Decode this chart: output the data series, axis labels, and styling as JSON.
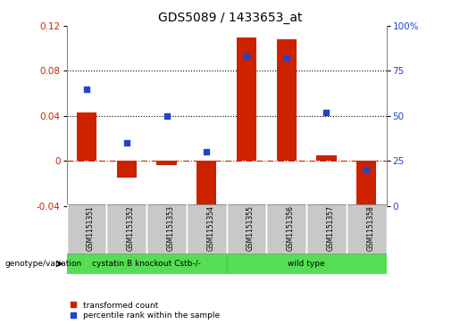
{
  "title": "GDS5089 / 1433653_at",
  "samples": [
    "GSM1151351",
    "GSM1151352",
    "GSM1151353",
    "GSM1151354",
    "GSM1151355",
    "GSM1151356",
    "GSM1151357",
    "GSM1151358"
  ],
  "transformed_count": [
    0.043,
    -0.015,
    -0.004,
    -0.045,
    0.11,
    0.108,
    0.005,
    -0.046
  ],
  "percentile_rank": [
    65,
    35,
    50,
    30,
    83,
    82,
    52,
    20
  ],
  "bar_color": "#cc2200",
  "dot_color": "#2244cc",
  "ylim_left": [
    -0.04,
    0.12
  ],
  "ylim_right": [
    0,
    100
  ],
  "yticks_left": [
    -0.04,
    0.0,
    0.04,
    0.08,
    0.12
  ],
  "yticks_right": [
    0,
    25,
    50,
    75,
    100
  ],
  "hlines_dotted": [
    0.04,
    0.08
  ],
  "hline_dashdot": 0.0,
  "groups": [
    {
      "label": "cystatin B knockout Cstb-/-",
      "start": 0,
      "end": 4,
      "color": "#55dd55"
    },
    {
      "label": "wild type",
      "start": 4,
      "end": 8,
      "color": "#55dd55"
    }
  ],
  "genotype_label": "genotype/variation",
  "legend_red": "transformed count",
  "legend_blue": "percentile rank within the sample",
  "bar_width": 0.5,
  "xtick_bg": "#c8c8c8",
  "border_color": "#888888"
}
